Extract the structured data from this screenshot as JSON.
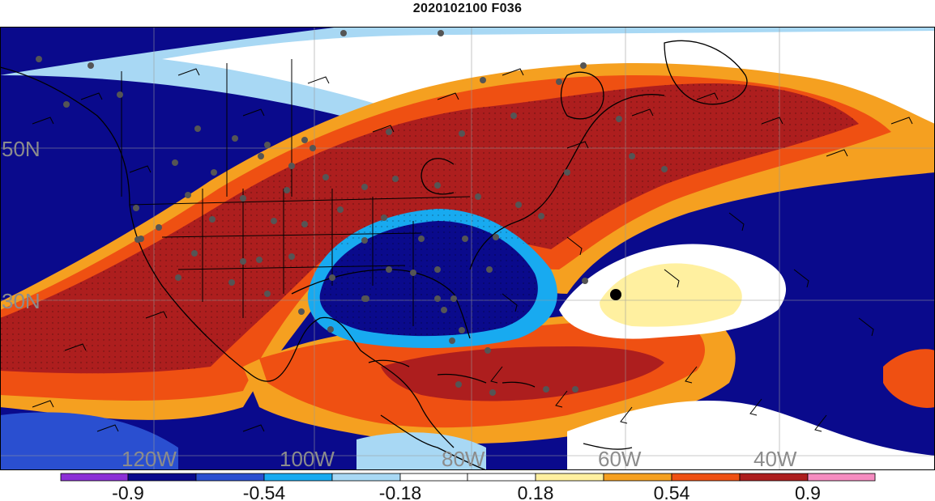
{
  "title": "2020102100 F036",
  "colors": {
    "purple": "#8c2fd6",
    "navy": "#0a0a8c",
    "royal": "#2a4fd0",
    "sky": "#18aaf0",
    "pale_blue": "#a8d8f4",
    "white": "#ffffff",
    "pale_yellow": "#fff0a0",
    "orange": "#f5a020",
    "red_orange": "#ef5012",
    "dark_red": "#ad1e1e",
    "pink": "#f58cc0"
  },
  "map": {
    "lat_labels": [
      "50N",
      "30N"
    ],
    "lon_labels": [
      "120W",
      "100W",
      "80W",
      "60W",
      "40W"
    ]
  },
  "colorbar": {
    "tick_labels": [
      "-0.9",
      "-0.54",
      "-0.18",
      "0.18",
      "0.54",
      "0.9"
    ]
  }
}
